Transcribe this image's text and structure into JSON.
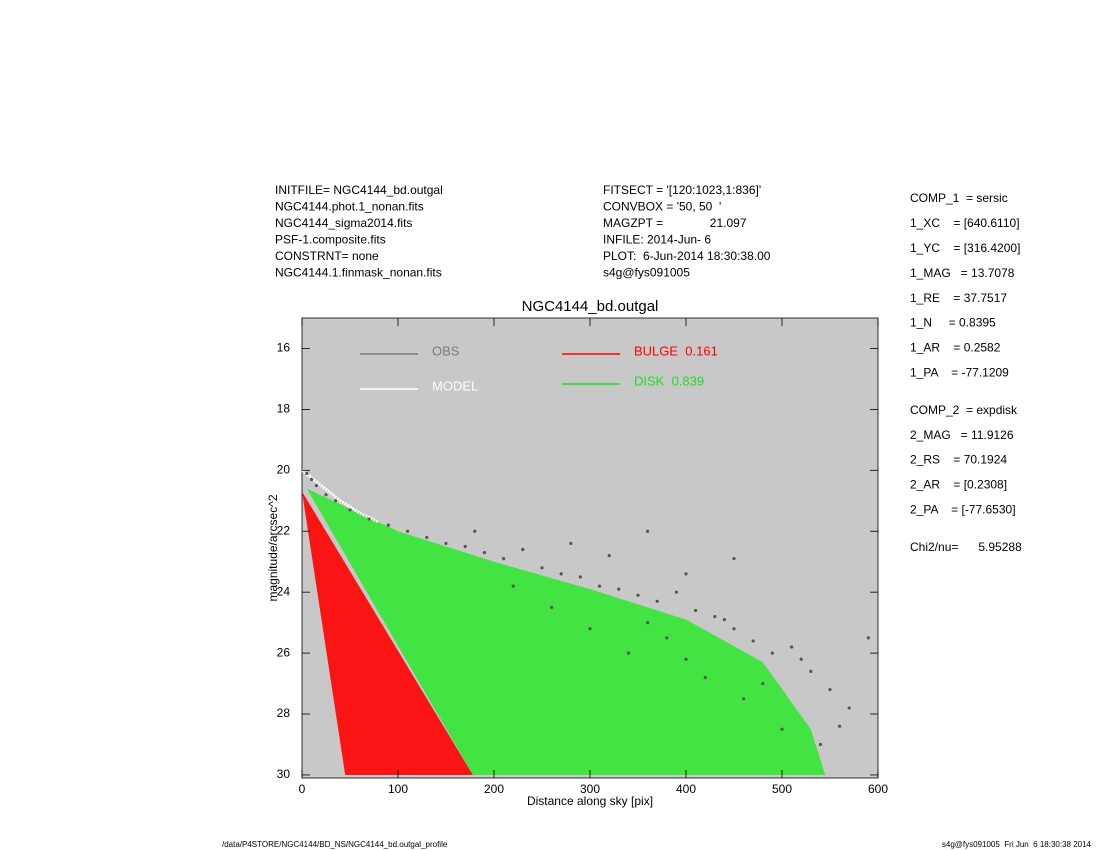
{
  "header": {
    "left": [
      "INITFILE= NGC4144_bd.outgal",
      "NGC4144.phot.1_nonan.fits",
      "NGC4144_sigma2014.fits",
      "PSF-1.composite.fits",
      "CONSTRNT= none",
      "NGC4144.1.finmask_nonan.fits"
    ],
    "middle": [
      "FITSECT = '[120:1023,1:836]'",
      "CONVBOX = '50, 50  '",
      "MAGZPT =              21.097",
      "INFILE: 2014-Jun- 6",
      "PLOT:  6-Jun-2014 18:30:38.00",
      "s4g@fys091005"
    ]
  },
  "parameters": [
    [
      "COMP_1  = sersic",
      "1_XC    = [640.6110]",
      "1_YC    = [316.4200]",
      "1_MAG   = 13.7078",
      "1_RE    = 37.7517",
      "1_N     = 0.8395",
      "1_AR    = 0.2582",
      "1_PA    = -77.1209"
    ],
    [
      "COMP_2  = expdisk",
      "2_MAG   = 11.9126",
      "2_RS    = 70.1924",
      "2_AR    = [0.2308]",
      "2_PA    = [-77.6530]"
    ],
    [
      "Chi2/nu=      5.95288"
    ]
  ],
  "footer": {
    "left": "/data/P4STORE/NGC4144/BD_NS/NGC4144_bd.outgal_profile",
    "right": "s4g@fys091005  Fri Jun  6 18:30:38 2014"
  },
  "chart_data": {
    "type": "scatter",
    "title": "NGC4144_bd.outgal",
    "x_label": "Distance along sky [pix]",
    "y_label": "magnitude/arcsec^2",
    "xlim": [
      0,
      600
    ],
    "ylim": [
      15,
      30.1
    ],
    "y_inverted": true,
    "xticks": [
      0,
      100,
      200,
      300,
      400,
      500,
      600
    ],
    "yticks": [
      16,
      18,
      20,
      22,
      24,
      26,
      28,
      30
    ],
    "background": "#c8c8c8",
    "series": [
      {
        "name": "OBS",
        "color": "#555555",
        "legend_color": "#7a7a7a",
        "mark": "scatter",
        "x": [
          5,
          10,
          15,
          25,
          35,
          50,
          70,
          90,
          110,
          130,
          150,
          170,
          190,
          210,
          230,
          250,
          270,
          290,
          310,
          330,
          350,
          370,
          390,
          410,
          430,
          450,
          470,
          490,
          510,
          530,
          550,
          570,
          590,
          260,
          300,
          340,
          380,
          420,
          460,
          500,
          540,
          180,
          220,
          280,
          320,
          360,
          400,
          440,
          480,
          520,
          560,
          360,
          400,
          450
        ],
        "values": [
          20.1,
          20.3,
          20.5,
          20.8,
          21.0,
          21.3,
          21.6,
          21.8,
          22.0,
          22.2,
          22.4,
          22.5,
          22.7,
          22.9,
          22.6,
          23.2,
          23.4,
          23.5,
          23.8,
          23.9,
          24.1,
          24.3,
          24.0,
          24.6,
          24.8,
          25.2,
          25.6,
          26.0,
          25.8,
          26.6,
          27.2,
          27.8,
          25.5,
          24.5,
          25.2,
          26.0,
          25.5,
          26.8,
          27.5,
          28.5,
          29.0,
          22.0,
          23.8,
          22.4,
          22.8,
          25.0,
          26.2,
          24.9,
          27.0,
          26.2,
          28.4,
          22.0,
          23.4,
          22.9
        ]
      },
      {
        "name": "MODEL",
        "color": "#ffffff",
        "legend_color": "#ffffff",
        "mark": "line",
        "x": [
          0,
          20,
          40,
          60,
          80
        ],
        "values": [
          20.0,
          20.5,
          21.0,
          21.4,
          21.7
        ]
      },
      {
        "name": "BULGE  0.161",
        "color": "#ff0000",
        "legend_color": "#ff0000",
        "mark": "area",
        "x": [
          0,
          45,
          178
        ],
        "values": [
          20.7,
          30,
          30
        ]
      },
      {
        "name": "DISK  0.839",
        "color": "#33e633",
        "legend_color": "#22dd22",
        "mark": "area",
        "x": [
          5,
          100,
          200,
          300,
          400,
          480,
          530,
          545,
          178
        ],
        "values": [
          20.6,
          22.0,
          23.0,
          23.9,
          24.9,
          26.3,
          28.5,
          30,
          30
        ]
      }
    ]
  }
}
